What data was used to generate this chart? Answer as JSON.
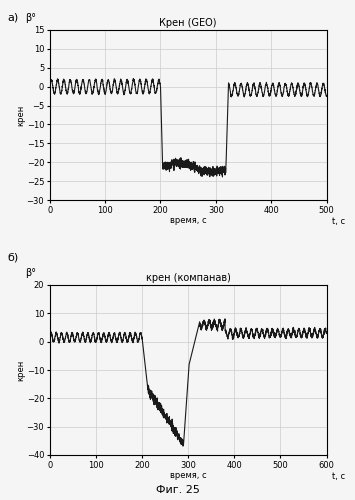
{
  "fig_title": "Фиг. 25",
  "plot_a": {
    "title": "Крен (GEO)",
    "xlabel": "время, с",
    "xlabel_right": "t, с",
    "ylabel": "крен",
    "ylabel_top": "β°",
    "xlim": [
      0,
      500
    ],
    "ylim": [
      -30,
      15
    ],
    "yticks": [
      -30,
      -25,
      -20,
      -15,
      -10,
      -5,
      0,
      5,
      10,
      15
    ],
    "xticks": [
      0,
      100,
      200,
      300,
      400,
      500
    ],
    "label": "а)"
  },
  "plot_b": {
    "title": "крен (компанав)",
    "xlabel": "время, с",
    "xlabel_right": "t, с",
    "ylabel": "крен",
    "ylabel_top": "β°",
    "xlim": [
      0,
      600
    ],
    "ylim": [
      -40,
      20
    ],
    "yticks": [
      -40,
      -30,
      -20,
      -10,
      0,
      10,
      20
    ],
    "xticks": [
      0,
      100,
      200,
      300,
      400,
      500,
      600
    ],
    "label": "б)"
  },
  "line_color": "#1a1a1a",
  "grid_color": "#cccccc",
  "background": "#f5f5f5"
}
